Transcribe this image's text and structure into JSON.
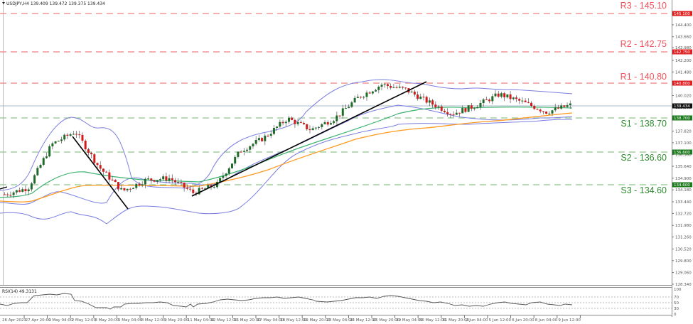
{
  "header": {
    "symbol": "USDJPY,H4",
    "ohlc": "139.409 139.472 139.375 139.434",
    "full": "USDJPY,H4  139.409 139.472 139.375 139.434"
  },
  "colors": {
    "resistance": "#f0505a",
    "support": "#2e8b2e",
    "support_line": "#7fbf7f",
    "resistance_line": "#f08080",
    "bull": "#1f6b2a",
    "bear": "#d11a1a",
    "bollinger": "#7a7ee0",
    "ma_fast": "#3cb371",
    "ma_slow": "#ff9a1f",
    "trendline": "#000000",
    "current_price_bg": "#111111"
  },
  "levels": [
    {
      "name": "R3",
      "label": "R3 - 145.10",
      "price": 145.1,
      "tag": "145.100",
      "type": "resistance"
    },
    {
      "name": "R2",
      "label": "R2 - 142.75",
      "price": 142.75,
      "tag": "142.750",
      "type": "resistance"
    },
    {
      "name": "R1",
      "label": "R1 - 140.80",
      "price": 140.8,
      "tag": "140.800",
      "type": "resistance"
    },
    {
      "name": "S1",
      "label": "S1 - 138.70",
      "price": 138.7,
      "tag": "138.700",
      "type": "support"
    },
    {
      "name": "S2",
      "label": "S2 - 136.60",
      "price": 136.6,
      "tag": "136.600",
      "type": "support"
    },
    {
      "name": "S3",
      "label": "S3 - 134.60",
      "price": 134.6,
      "tag": "134.600",
      "type": "support"
    }
  ],
  "current_price": {
    "value": 139.434,
    "tag": "139.434"
  },
  "price_axis": {
    "ticks": [
      "144.400",
      "143.660",
      "142.980",
      "142.200",
      "141.480",
      "140.020",
      "139.300",
      "138.580",
      "137.820",
      "137.100",
      "136.360",
      "135.640",
      "134.900",
      "134.180",
      "133.440",
      "132.720",
      "131.980",
      "131.260",
      "130.520",
      "129.800",
      "129.060",
      "128.340"
    ]
  },
  "time_axis": {
    "labels": [
      "26 Apr 2023",
      "27 Apr 20:00",
      "1 May 04:00",
      "2 May 12:00",
      "3 May 20:00",
      "5 May 04:00",
      "8 May 12:00",
      "9 May 20:00",
      "11 May 04:00",
      "12 May 12:00",
      "15 May 20:00",
      "17 May 04:00",
      "18 May 12:00",
      "19 May 20:00",
      "23 May 04:00",
      "24 May 12:00",
      "25 May 20:00",
      "29 May 04:00",
      "30 May 12:00",
      "31 May 20:00",
      "2 Jun 04:00",
      "5 Jun 12:00",
      "6 Jun 20:00",
      "8 Jun 04:00",
      "9 Jun 12:00"
    ]
  },
  "rsi": {
    "label": "RSI(14) 49.3131",
    "ticks": [
      "100",
      "70",
      "50",
      "30",
      "0"
    ]
  },
  "chart_data": {
    "type": "candlestick",
    "title": "USDJPY,H4",
    "subtitle": "O 139.409 H 139.472 L 139.375 C 139.434",
    "xlabel": "",
    "ylabel": "",
    "ylim": [
      128.34,
      145.1
    ],
    "grid": false,
    "indicators": [
      "Bollinger Bands",
      "Moving Average (fast, green)",
      "Moving Average (slow, orange)",
      "RSI(14)"
    ],
    "horizontal_levels": {
      "R3": 145.1,
      "R2": 142.75,
      "R1": 140.8,
      "S1": 138.7,
      "S2": 136.6,
      "S3": 134.6
    },
    "trendlines": [
      {
        "from": {
          "x": "2 May 12:00",
          "y": 137.9
        },
        "to": {
          "x": "4 May",
          "y": 133.3
        },
        "style": "downtrend"
      },
      {
        "from": {
          "x": "11 May 04:00",
          "y": 133.9
        },
        "to": {
          "x": "30 May 12:00",
          "y": 140.9
        },
        "style": "uptrend"
      }
    ],
    "approx_close_path": {
      "x": [
        "26 Apr 2023",
        "27 Apr 20:00",
        "1 May 04:00",
        "2 May 12:00",
        "3 May 20:00",
        "5 May 04:00",
        "8 May 12:00",
        "9 May 20:00",
        "11 May 04:00",
        "12 May 12:00",
        "15 May 20:00",
        "17 May 04:00",
        "18 May 12:00",
        "19 May 20:00",
        "23 May 04:00",
        "24 May 12:00",
        "25 May 20:00",
        "29 May 04:00",
        "30 May 12:00",
        "31 May 20:00",
        "2 Jun 04:00",
        "5 Jun 12:00",
        "6 Jun 20:00",
        "8 Jun 04:00",
        "9 Jun 12:00"
      ],
      "y": [
        133.9,
        134.3,
        137.0,
        137.8,
        135.6,
        134.1,
        134.8,
        134.9,
        134.0,
        134.5,
        136.6,
        137.4,
        138.6,
        137.9,
        138.6,
        139.9,
        140.7,
        140.4,
        139.6,
        138.9,
        139.4,
        140.1,
        139.6,
        139.0,
        139.43
      ]
    },
    "rsi": {
      "name": "RSI(14)",
      "last": 49.3131,
      "levels": [
        70,
        50,
        30
      ],
      "ylim": [
        0,
        100
      ]
    }
  }
}
